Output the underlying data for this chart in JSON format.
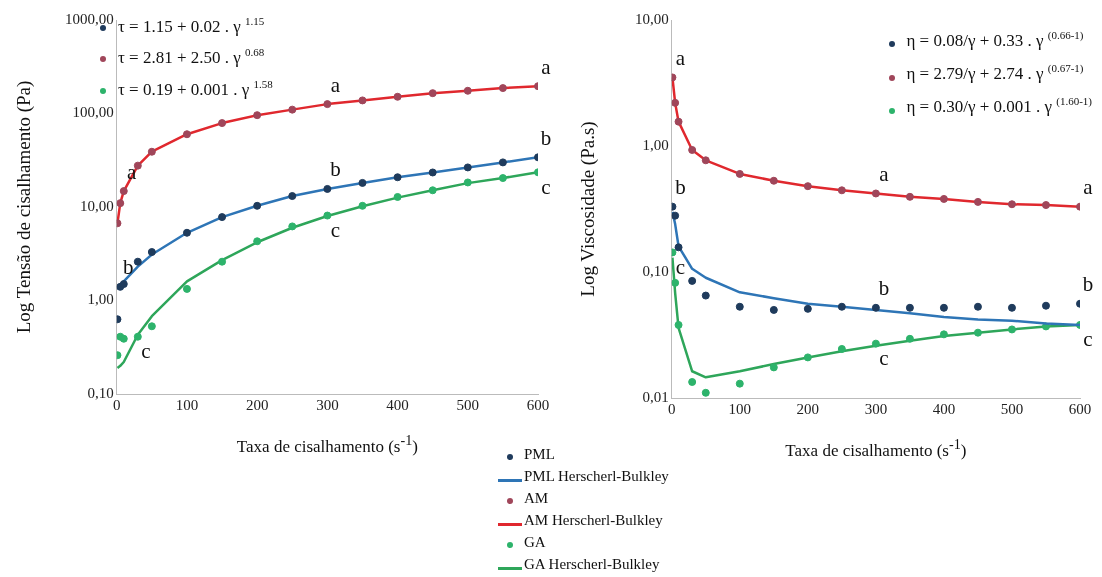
{
  "chart_data": [
    {
      "type": "line",
      "xlabel": "Taxa de cisalhamento (s$^{-1}$)",
      "ylabel": "Log Tensão de cisalhamento (Pa)",
      "log": "y",
      "grid": false,
      "legend": "bottom",
      "x": [
        1,
        5,
        10,
        30,
        50,
        100,
        150,
        200,
        250,
        300,
        350,
        400,
        450,
        500,
        550,
        600
      ],
      "xlim": [
        0,
        600
      ],
      "xticks": [
        0,
        100,
        200,
        300,
        400,
        500,
        600
      ],
      "ylim": [
        0.1,
        1000
      ],
      "yticks": [
        {
          "value": 0.1,
          "label": "0,10"
        },
        {
          "value": 1,
          "label": "1,00"
        },
        {
          "value": 10,
          "label": "10,00"
        },
        {
          "value": 100,
          "label": "100,00"
        },
        {
          "value": 1000,
          "label": "1000,00"
        }
      ],
      "series": [
        {
          "name": "PML",
          "type": "scatter",
          "marker": "circle",
          "color": "#1f3b5c",
          "values": [
            0.63,
            1.4,
            1.5,
            2.6,
            3.3,
            5.3,
            7.8,
            10.3,
            13.1,
            15.6,
            18.1,
            20.8,
            23.4,
            26.5,
            30,
            34
          ]
        },
        {
          "name": "PML Herscherl-Bulkley",
          "type": "line",
          "color": "#2e75b6",
          "values": [
            1.33,
            1.46,
            1.6,
            2.3,
            3.1,
            5.3,
            7.8,
            10.3,
            13.1,
            15.6,
            18.1,
            20.8,
            23.4,
            26.5,
            30,
            34
          ]
        },
        {
          "name": "AM",
          "type": "scatter",
          "marker": "circle",
          "color": "#a0465a",
          "values": [
            6.7,
            11,
            14.8,
            27.7,
            39,
            60,
            79,
            96,
            110,
            126,
            138,
            151,
            165,
            175,
            187,
            196
          ]
        },
        {
          "name": "AM Herscherl-Bulkley",
          "type": "line",
          "color": "#e0282e",
          "values": [
            6.7,
            11,
            14.8,
            27.7,
            39,
            60,
            79,
            96,
            110,
            126,
            138,
            151,
            165,
            175,
            187,
            196
          ]
        },
        {
          "name": "GA",
          "type": "scatter",
          "marker": "circle",
          "color": "#2db36b",
          "values": [
            0.26,
            0.41,
            0.39,
            0.41,
            0.53,
            1.33,
            2.6,
            4.3,
            6.2,
            8.1,
            10.3,
            12.8,
            15.1,
            18.3,
            20.4,
            23.5
          ]
        },
        {
          "name": "GA Herscherl-Bulkley",
          "type": "line",
          "color": "#2ea65a",
          "values": [
            0.19,
            0.2,
            0.22,
            0.43,
            0.68,
            1.6,
            2.7,
            4.2,
            6.0,
            8.0,
            10.2,
            12.6,
            15.1,
            18,
            20.4,
            23.5
          ]
        }
      ],
      "annotations": [
        "τ = 1.15 + 0.02 . γ $^{1.15}$",
        "τ = 2.81 + 2.50 . γ $^{0.68}$",
        "τ = 0.19 + 0.001 . γ $^{1.58}$",
        {
          "text": "a",
          "x": 10,
          "y": 14.8
        },
        {
          "text": "a",
          "x": 300,
          "y": 126
        },
        {
          "text": "a",
          "x": 600,
          "y": 196
        },
        {
          "text": "b",
          "x": 5,
          "y": 1.4
        },
        {
          "text": "b",
          "x": 300,
          "y": 15.6
        },
        {
          "text": "b",
          "x": 600,
          "y": 34
        },
        {
          "text": "c",
          "x": 30,
          "y": 0.41
        },
        {
          "text": "c",
          "x": 300,
          "y": 8.1
        },
        {
          "text": "c",
          "x": 600,
          "y": 23.5
        }
      ]
    },
    {
      "type": "line",
      "xlabel": "Taxa de cisalhamento (s$^{-1}$)",
      "ylabel": "Log Viscosidade (Pa.s)",
      "log": "y",
      "grid": false,
      "legend": "top right",
      "x": [
        1,
        5,
        10,
        30,
        50,
        100,
        150,
        200,
        250,
        300,
        350,
        400,
        450,
        500,
        550,
        600
      ],
      "xlim": [
        0,
        600
      ],
      "xticks": [
        0,
        100,
        200,
        300,
        400,
        500,
        600
      ],
      "ylim": [
        0.01,
        10
      ],
      "yticks": [
        {
          "value": 0.01,
          "label": "0,01"
        },
        {
          "value": 0.1,
          "label": "0,10"
        },
        {
          "value": 1,
          "label": "1,00"
        },
        {
          "value": 10,
          "label": "10,00"
        }
      ],
      "series": [
        {
          "name": "η = 0.08/γ + 0.33 . γ $^{(0.66-1)}$",
          "type": "scatter",
          "marker": "circle",
          "color": "#1f3b5c",
          "values": [
            0.33,
            0.28,
            0.157,
            0.085,
            0.065,
            0.053,
            0.05,
            0.051,
            0.053,
            0.052,
            0.052,
            0.052,
            0.053,
            0.052,
            0.054,
            0.056
          ]
        },
        {
          "type": "line",
          "color": "#2e75b6",
          "values": [
            0.3,
            0.24,
            0.16,
            0.106,
            0.09,
            0.069,
            0.062,
            0.056,
            0.053,
            0.05,
            0.047,
            0.044,
            0.042,
            0.041,
            0.039,
            0.038
          ]
        },
        {
          "name": "η = 2.79/γ + 2.74 . γ $^{(0.67-1)}$",
          "type": "scatter",
          "marker": "circle",
          "color": "#a0465a",
          "values": [
            3.5,
            2.2,
            1.56,
            0.93,
            0.77,
            0.6,
            0.53,
            0.48,
            0.445,
            0.42,
            0.395,
            0.38,
            0.36,
            0.345,
            0.34,
            0.33
          ]
        },
        {
          "type": "line",
          "color": "#e0282e",
          "values": [
            3.5,
            2.2,
            1.56,
            0.93,
            0.77,
            0.6,
            0.53,
            0.48,
            0.445,
            0.42,
            0.395,
            0.38,
            0.36,
            0.345,
            0.34,
            0.33
          ]
        },
        {
          "name": "η = 0.30/γ + 0.001 . γ $^{(1.60-1)}$",
          "type": "scatter",
          "marker": "circle",
          "color": "#2db36b",
          "values": [
            0.143,
            0.082,
            0.038,
            0.0134,
            0.011,
            0.013,
            0.0175,
            0.021,
            0.0245,
            0.027,
            0.0295,
            0.032,
            0.033,
            0.035,
            0.037,
            0.038
          ]
        },
        {
          "type": "line",
          "color": "#2ea65a",
          "values": [
            0.13,
            0.068,
            0.036,
            0.0163,
            0.0146,
            0.0163,
            0.0186,
            0.021,
            0.0235,
            0.026,
            0.0285,
            0.031,
            0.033,
            0.035,
            0.037,
            0.038
          ]
        }
      ],
      "annotations": [
        {
          "text": "a",
          "x": 1,
          "y": 3.5
        },
        {
          "text": "a",
          "x": 300,
          "y": 0.42
        },
        {
          "text": "a",
          "x": 600,
          "y": 0.33
        },
        {
          "text": "b",
          "x": 1,
          "y": 0.33
        },
        {
          "text": "b",
          "x": 300,
          "y": 0.052
        },
        {
          "text": "b",
          "x": 600,
          "y": 0.056
        },
        {
          "text": "c",
          "x": 1,
          "y": 0.143
        },
        {
          "text": "c",
          "x": 300,
          "y": 0.027
        },
        {
          "text": "c",
          "x": 600,
          "y": 0.038
        }
      ]
    }
  ]
}
